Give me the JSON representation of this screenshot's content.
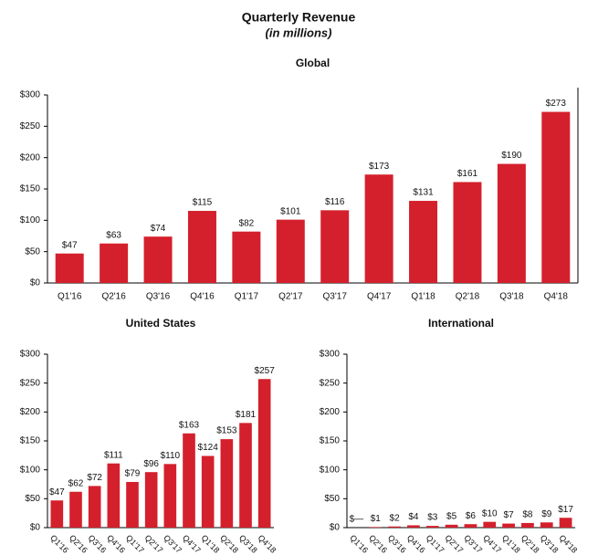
{
  "title": "Quarterly Revenue",
  "subtitle": "(in millions)",
  "chart_data": [
    {
      "type": "bar",
      "title": "Global",
      "color": "#d4202c",
      "categories": [
        "Q1'16",
        "Q2'16",
        "Q3'16",
        "Q4'16",
        "Q1'17",
        "Q2'17",
        "Q3'17",
        "Q4'17",
        "Q1'18",
        "Q2'18",
        "Q3'18",
        "Q4'18"
      ],
      "values": [
        47,
        63,
        74,
        115,
        82,
        101,
        116,
        173,
        131,
        161,
        190,
        273
      ],
      "value_labels": [
        "$47",
        "$63",
        "$74",
        "$115",
        "$82",
        "$101",
        "$116",
        "$173",
        "$131",
        "$161",
        "$190",
        "$273"
      ],
      "ylim": [
        0,
        300
      ],
      "yticks": [
        {
          "value": 0,
          "label": "$0"
        },
        {
          "value": 50,
          "label": "$50"
        },
        {
          "value": 100,
          "label": "$100"
        },
        {
          "value": 150,
          "label": "$150"
        },
        {
          "value": 200,
          "label": "$200"
        },
        {
          "value": 250,
          "label": "$250"
        },
        {
          "value": 300,
          "label": "$300"
        }
      ]
    },
    {
      "type": "bar",
      "title": "United States",
      "color": "#d4202c",
      "categories": [
        "Q1'16",
        "Q2'16",
        "Q3'16",
        "Q4'16",
        "Q1'17",
        "Q2'17",
        "Q3'17",
        "Q4'17",
        "Q1'18",
        "Q2'18",
        "Q3'18",
        "Q4'18"
      ],
      "values": [
        47,
        62,
        72,
        111,
        79,
        96,
        110,
        163,
        124,
        153,
        181,
        257
      ],
      "value_labels": [
        "$47",
        "$62",
        "$72",
        "$111",
        "$79",
        "$96",
        "$110",
        "$163",
        "$124",
        "$153",
        "$181",
        "$257"
      ],
      "ylim": [
        0,
        300
      ],
      "yticks": [
        {
          "value": 0,
          "label": "$0"
        },
        {
          "value": 50,
          "label": "$50"
        },
        {
          "value": 100,
          "label": "$100"
        },
        {
          "value": 150,
          "label": "$150"
        },
        {
          "value": 200,
          "label": "$200"
        },
        {
          "value": 250,
          "label": "$250"
        },
        {
          "value": 300,
          "label": "$300"
        }
      ]
    },
    {
      "type": "bar",
      "title": "International",
      "color": "#d4202c",
      "categories": [
        "Q1'16",
        "Q2'16",
        "Q3'16",
        "Q4'16",
        "Q1'17",
        "Q2'17",
        "Q3'17",
        "Q4'17",
        "Q1'18",
        "Q2'18",
        "Q3'18",
        "Q4'18"
      ],
      "values": [
        0,
        1,
        2,
        4,
        3,
        5,
        6,
        10,
        7,
        8,
        9,
        17
      ],
      "value_labels": [
        "$—",
        "$1",
        "$2",
        "$4",
        "$3",
        "$5",
        "$6",
        "$10",
        "$7",
        "$8",
        "$9",
        "$17"
      ],
      "ylim": [
        0,
        300
      ],
      "yticks": [
        {
          "value": 0,
          "label": "$0"
        },
        {
          "value": 50,
          "label": "$50"
        },
        {
          "value": 100,
          "label": "$100"
        },
        {
          "value": 150,
          "label": "$150"
        },
        {
          "value": 200,
          "label": "$200"
        },
        {
          "value": 250,
          "label": "$250"
        },
        {
          "value": 300,
          "label": "$300"
        }
      ]
    }
  ]
}
